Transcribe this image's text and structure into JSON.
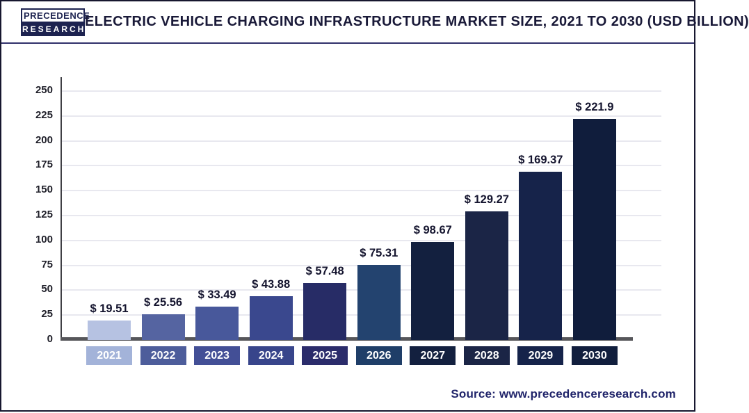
{
  "header": {
    "logo": {
      "line1": "PRECEDENCE",
      "line2": "RESEARCH"
    },
    "title": "Electric Vehicle Charging Infrastructure Market Size, 2021 to 2030 (USD Billion)"
  },
  "chart_data": {
    "type": "bar",
    "title": "Electric Vehicle Charging Infrastructure Market Size, 2021 to 2030 (USD Billion)",
    "categories": [
      "2021",
      "2022",
      "2023",
      "2024",
      "2025",
      "2026",
      "2027",
      "2028",
      "2029",
      "2030"
    ],
    "values": [
      19.51,
      25.56,
      33.49,
      43.88,
      57.48,
      75.31,
      98.67,
      129.27,
      169.37,
      221.9
    ],
    "value_labels": [
      "$ 19.51",
      "$ 25.56",
      "$ 33.49",
      "$ 43.88",
      "$ 57.48",
      "$ 75.31",
      "$ 98.67",
      "$ 129.27",
      "$ 169.37",
      "$ 221.9"
    ],
    "unit": "USD Billion",
    "xlabel": "",
    "ylabel": "",
    "ylim": [
      0,
      250
    ],
    "yticks": [
      0,
      25,
      50,
      75,
      100,
      125,
      150,
      175,
      200,
      225,
      250
    ],
    "grid": "horizontal",
    "legend": "none",
    "bar_colors": [
      "#b6c2e2",
      "#5564a1",
      "#48589b",
      "#3a488e",
      "#272c66",
      "#23436f",
      "#13203f",
      "#1b2546",
      "#16234a",
      "#101d3c"
    ],
    "tick_box_colors": [
      "#a3b3d9",
      "#4d5d9b",
      "#434f96",
      "#38458b",
      "#2b2c6b",
      "#1f3e68",
      "#13203f",
      "#1b2546",
      "#15234a",
      "#111e3d"
    ]
  },
  "source": {
    "text": "Source: www.precedenceresearch.com"
  }
}
